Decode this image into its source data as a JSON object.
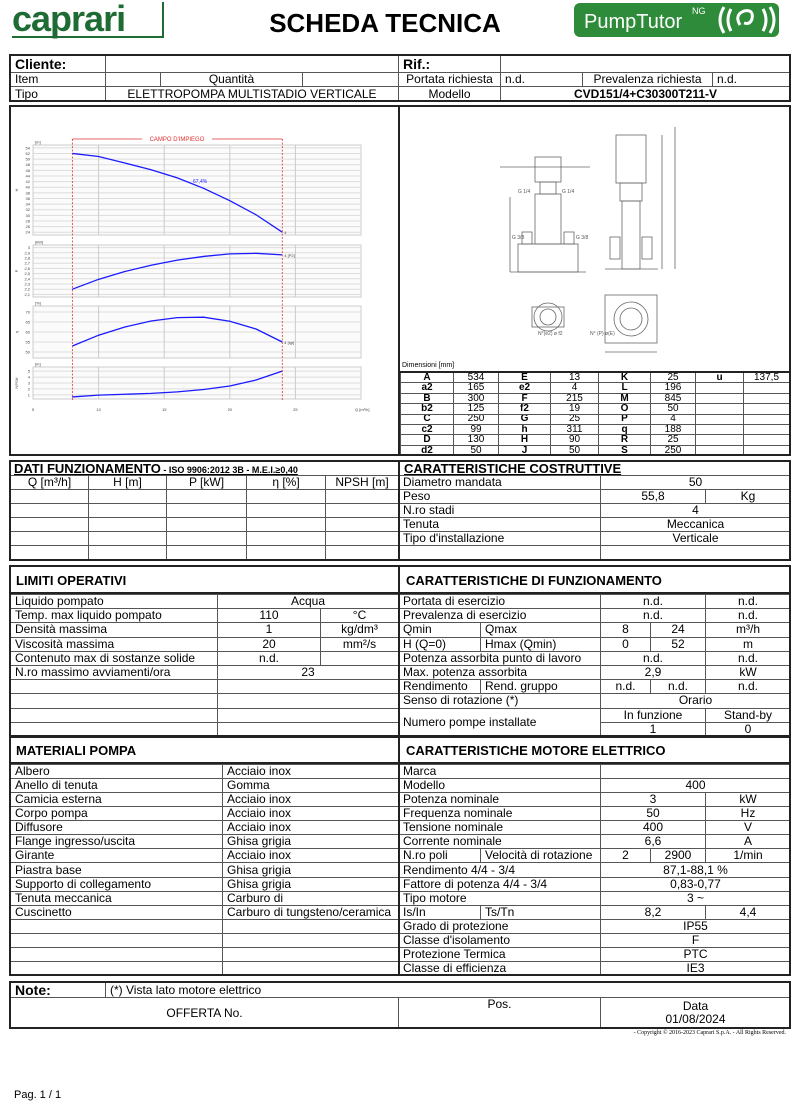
{
  "header": {
    "brand_logo": "caprari",
    "title": "SCHEDA TECNICA",
    "app_logo": "PumpTutor NG",
    "brand_color": "#1f6b34"
  },
  "info": [
    [
      "Cliente:",
      "",
      "Rif.:",
      ""
    ],
    [
      "Item",
      "",
      "Quantità",
      "",
      "Portata richiesta",
      "n.d.",
      "Prevalenza richiesta",
      "n.d."
    ],
    [
      "Tipo",
      "ELETTROPOMPA MULTISTADIO VERTICALE",
      "Modello",
      "CVD151/4+C30300T211-V"
    ]
  ],
  "chart_data": {
    "type": "line",
    "title": "CAMPO D'IMPIEGO",
    "xlabel": "Q [m³/h]",
    "x_ticks": [
      5,
      10,
      15,
      20,
      25
    ],
    "xlim": [
      5,
      30
    ],
    "operating_range": [
      8,
      24
    ],
    "grid": true,
    "curve_color": "#1a1aff",
    "range_color": "#e03030",
    "x": [
      8,
      10,
      12,
      14,
      16,
      18,
      20,
      22,
      24
    ],
    "panels": [
      {
        "name": "H",
        "unit": "[m]",
        "ylim": [
          23,
          55
        ],
        "ticks": [
          24,
          26,
          28,
          30,
          32,
          34,
          36,
          38,
          40,
          42,
          44,
          46,
          48,
          50,
          52,
          54
        ],
        "values": [
          52,
          50.9,
          48.6,
          46.2,
          43.3,
          39.6,
          35.2,
          30.2,
          24
        ],
        "end_label": "4",
        "annotation": "67,4%",
        "annotation_q": 17.5
      },
      {
        "name": "P",
        "unit": "[kW]",
        "ylim": [
          2.05,
          3.05
        ],
        "ticks": [
          2.1,
          2.2,
          2.3,
          2.4,
          2.5,
          2.6,
          2.7,
          2.8,
          2.9,
          3
        ],
        "values": [
          2.2,
          2.39,
          2.54,
          2.66,
          2.76,
          2.83,
          2.88,
          2.89,
          2.86
        ],
        "end_label": "4 [P2]"
      },
      {
        "name": "η",
        "unit": "[%]",
        "ylim": [
          47,
          73
        ],
        "ticks": [
          50,
          55,
          60,
          65,
          70
        ],
        "values": [
          53,
          58.4,
          62.5,
          65.5,
          67.2,
          67.4,
          65.4,
          61.5,
          55
        ],
        "end_label": "4 [ηp]"
      },
      {
        "name": "NPSH",
        "unit": "[m]",
        "ylim": [
          0.3,
          5.7
        ],
        "ticks": [
          1,
          2,
          3,
          4,
          5
        ],
        "values": [
          0.65,
          0.95,
          1.1,
          1.25,
          1.5,
          1.9,
          2.5,
          3.5,
          5
        ],
        "end_label": ""
      }
    ]
  },
  "drawing_labels": {
    "flange_in": "G 1/4",
    "flange_out": "G 1/4",
    "drain_l": "G 3/8",
    "drain_r": "G 3/8",
    "holes_a": "N°(e2) ø f2",
    "holes_b": "N° (P) ø(E)"
  },
  "dimensions": {
    "caption": "Dimensioni [mm]",
    "rows": [
      [
        "A",
        "534",
        "E",
        "13",
        "K",
        "25",
        "u",
        "137,5"
      ],
      [
        "a2",
        "165",
        "e2",
        "4",
        "L",
        "196",
        "",
        ""
      ],
      [
        "B",
        "300",
        "F",
        "215",
        "M",
        "845",
        "",
        ""
      ],
      [
        "b2",
        "125",
        "f2",
        "19",
        "O",
        "50",
        "",
        ""
      ],
      [
        "C",
        "250",
        "G",
        "25",
        "P",
        "4",
        "",
        ""
      ],
      [
        "c2",
        "99",
        "h",
        "311",
        "q",
        "188",
        "",
        ""
      ],
      [
        "D",
        "130",
        "H",
        "90",
        "R",
        "25",
        "",
        ""
      ],
      [
        "d2",
        "50",
        "J",
        "50",
        "S",
        "250",
        "",
        ""
      ]
    ]
  },
  "dati": {
    "title": "DATI FUNZIONAMENTO",
    "subtitle": " - ISO 9906:2012 3B - M.E.I.≥0,40",
    "rows": [
      [
        "Q [m³/h]",
        "H [m]",
        "P [kW]",
        "η [%]",
        "NPSH [m]"
      ],
      [
        "",
        "",
        "",
        "",
        ""
      ],
      [
        "",
        "",
        "",
        "",
        ""
      ],
      [
        "",
        "",
        "",
        "",
        ""
      ],
      [
        "",
        "",
        "",
        "",
        ""
      ],
      [
        "",
        "",
        "",
        "",
        ""
      ]
    ]
  },
  "costruttive": {
    "title": "CARATTERISTICHE COSTRUTTIVE",
    "rows": [
      [
        "Diametro mandata",
        "50"
      ],
      [
        "Peso",
        "55,8",
        "Kg"
      ],
      [
        "N.ro stadi",
        "4"
      ],
      [
        "Tenuta",
        "Meccanica"
      ],
      [
        "Tipo d'installazione",
        "Verticale"
      ],
      [
        "",
        ""
      ]
    ]
  },
  "limiti": {
    "title": "LIMITI OPERATIVI",
    "rows": [
      [
        "Liquido pompato",
        "Acqua"
      ],
      [
        "Temp. max liquido pompato",
        "110",
        "°C"
      ],
      [
        "Densità massima",
        "1",
        "kg/dm³"
      ],
      [
        "Viscosità massima",
        "20",
        "mm²/s"
      ],
      [
        "Contenuto max di sostanze solide",
        "n.d.",
        ""
      ],
      [
        "N.ro massimo avviamenti/ora",
        "23"
      ],
      [
        "",
        ""
      ],
      [
        "",
        ""
      ],
      [
        "",
        ""
      ],
      [
        "",
        ""
      ]
    ]
  },
  "funzionamento": {
    "title": "CARATTERISTICHE DI FUNZIONAMENTO",
    "rows": [
      [
        "Portata di esercizio",
        "n.d.",
        "n.d."
      ],
      [
        "Prevalenza di esercizio",
        "n.d.",
        "n.d."
      ],
      [
        "Qmin",
        "Qmax",
        "8",
        "24",
        "m³/h"
      ],
      [
        "H (Q=0)",
        "Hmax (Qmin)",
        "0",
        "52",
        "m"
      ],
      [
        "Potenza assorbita punto di lavoro",
        "n.d.",
        "n.d."
      ],
      [
        "Max. potenza assorbita",
        "2,9",
        "kW"
      ],
      [
        "Rendimento",
        "Rend. gruppo",
        "n.d.",
        "n.d.",
        "n.d."
      ],
      [
        "Senso di rotazione (*)",
        "Orario"
      ],
      [
        "Numero pompe installate",
        "In funzione",
        "Stand-by"
      ],
      [
        "1",
        "0"
      ]
    ]
  },
  "materiali": {
    "title": "MATERIALI POMPA",
    "rows": [
      [
        "Albero",
        "Acciaio inox"
      ],
      [
        "Anello di tenuta",
        "Gomma"
      ],
      [
        "Camicia esterna",
        "Acciaio inox"
      ],
      [
        "Corpo pompa",
        "Acciaio inox"
      ],
      [
        "Diffusore",
        "Acciaio inox"
      ],
      [
        "Flange ingresso/uscita",
        "Ghisa grigia"
      ],
      [
        "Girante",
        "Acciaio inox"
      ],
      [
        "Piastra base",
        "Ghisa grigia"
      ],
      [
        "Supporto di collegamento",
        "Ghisa grigia"
      ],
      [
        "Tenuta meccanica",
        "Carburo di"
      ],
      [
        "Cuscinetto",
        "Carburo di tungsteno/ceramica"
      ],
      [
        "",
        ""
      ],
      [
        "",
        ""
      ],
      [
        "",
        ""
      ],
      [
        "",
        ""
      ]
    ]
  },
  "motore": {
    "title": "CARATTERISTICHE MOTORE ELETTRICO",
    "rows": [
      [
        "Marca",
        ""
      ],
      [
        "Modello",
        "400"
      ],
      [
        "Potenza nominale",
        "3",
        "kW"
      ],
      [
        "Frequenza nominale",
        "50",
        "Hz"
      ],
      [
        "Tensione nominale",
        "400",
        "V"
      ],
      [
        "Corrente nominale",
        "6,6",
        "A"
      ],
      [
        "N.ro poli",
        "Velocità di rotazione",
        "2",
        "2900",
        "1/min"
      ],
      [
        "Rendimento 4/4 - 3/4",
        "87,1-88,1 %"
      ],
      [
        "Fattore di potenza 4/4 - 3/4",
        "0,83-0,77"
      ],
      [
        "Tipo motore",
        "3 ~"
      ],
      [
        "Is/In",
        "Ts/Tn",
        "8,2",
        "4,4"
      ],
      [
        "Grado di protezione",
        "IP55"
      ],
      [
        "Classe d'isolamento",
        "F"
      ],
      [
        "Protezione Termica",
        "PTC"
      ],
      [
        "Classe di efficienza",
        "IE3"
      ]
    ]
  },
  "footer": {
    "rows": [
      [
        "Note:",
        "(*) Vista lato motore elettrico"
      ],
      [
        "OFFERTA No.",
        "Pos.",
        "Data\n01/08/2024"
      ]
    ],
    "copyright": "-   Copyright © 2016-2023 Caprari S.p.A. - All Rights Reserved.",
    "page": "Pag. 1 / 1"
  }
}
